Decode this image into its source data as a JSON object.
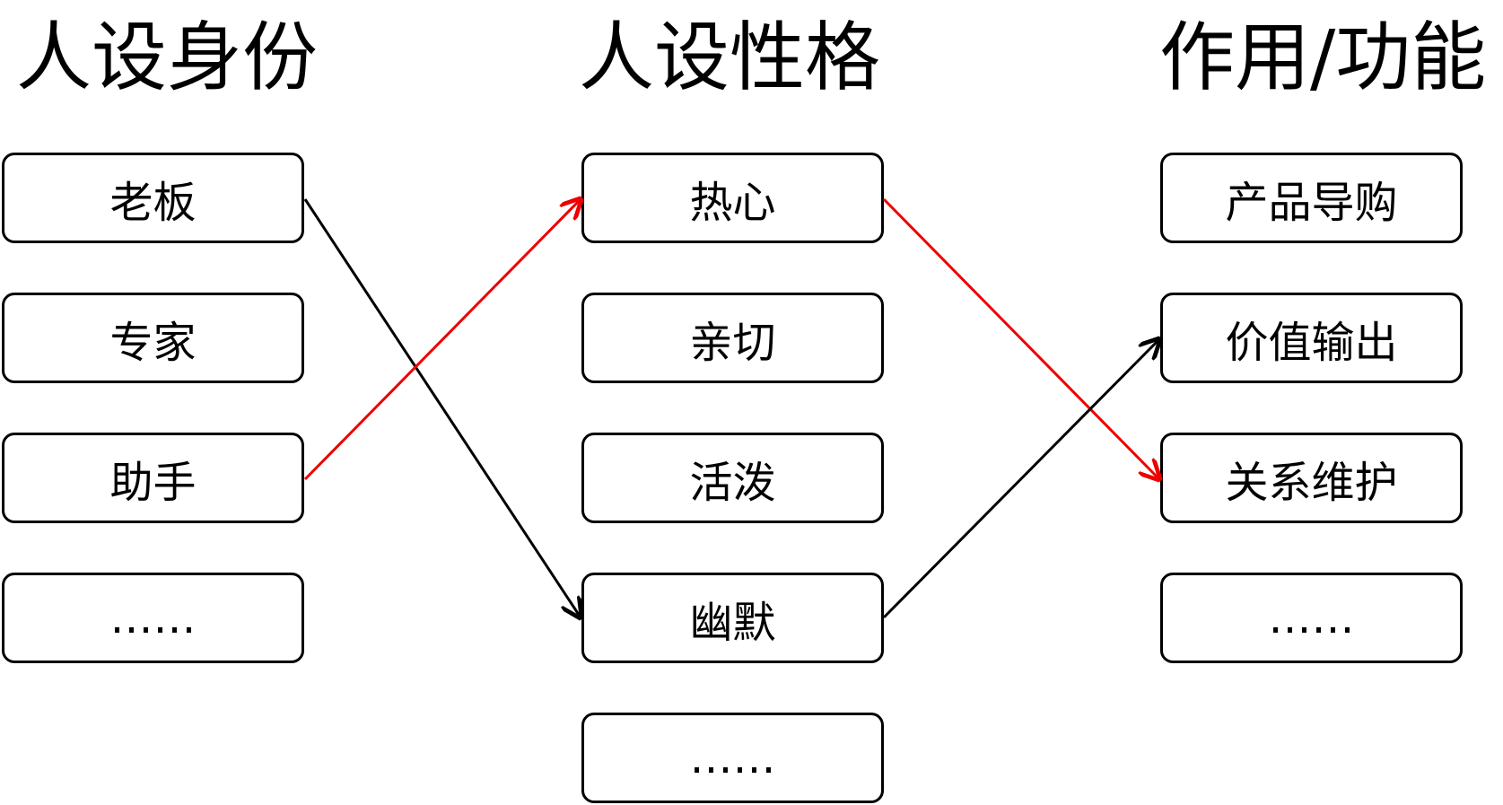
{
  "columns": [
    {
      "title": "人设身份",
      "items": [
        "老板",
        "专家",
        "助手",
        "……"
      ]
    },
    {
      "title": "人设性格",
      "items": [
        "热心",
        "亲切",
        "活泼",
        "幽默",
        "……"
      ]
    },
    {
      "title": "作用/功能",
      "items": [
        "产品导购",
        "价值输出",
        "关系维护",
        "……"
      ]
    }
  ]
}
